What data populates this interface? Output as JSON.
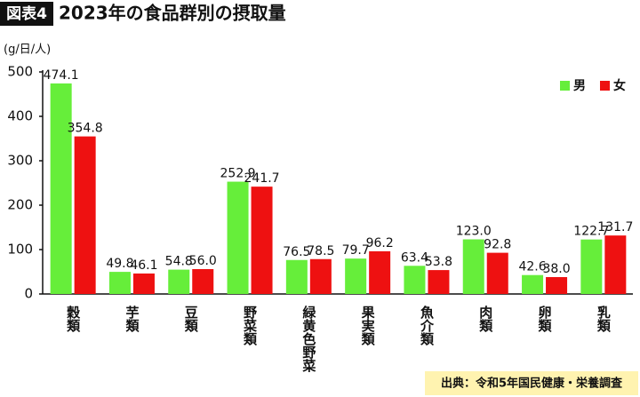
{
  "chart_data": {
    "type": "bar",
    "badge": "図表4",
    "title": "2023年の食品群別の摂取量",
    "unit": "(g/日/人)",
    "source": "出典：令和5年国民健康・栄養調査",
    "categories": [
      "穀類",
      "芋類",
      "豆類",
      "野菜類",
      "緑黄色野菜",
      "果実類",
      "魚介類",
      "肉類",
      "卵類",
      "乳類"
    ],
    "series": [
      {
        "name": "男",
        "color": "#66ee3a",
        "values": [
          474.1,
          49.8,
          54.8,
          252.9,
          76.5,
          79.7,
          63.4,
          123.0,
          42.6,
          122.7
        ],
        "value_labels": [
          "474.1",
          "49.8",
          "54.8",
          "252.9",
          "76.5",
          "79.7",
          "63.4",
          "123.0",
          "42.6",
          "122.7"
        ]
      },
      {
        "name": "女",
        "color": "#ee1111",
        "values": [
          354.8,
          46.1,
          56.0,
          241.7,
          78.5,
          96.2,
          53.8,
          92.8,
          38.0,
          131.7
        ],
        "value_labels": [
          "354.8",
          "46.1",
          "56.0",
          "241.7",
          "78.5",
          "96.2",
          "53.8",
          "92.8",
          "38.0",
          "131.7"
        ]
      }
    ],
    "ylim": [
      0,
      500
    ],
    "yticks": [
      0,
      100,
      200,
      300,
      400,
      500
    ],
    "grid": false,
    "legend": "top-right"
  }
}
